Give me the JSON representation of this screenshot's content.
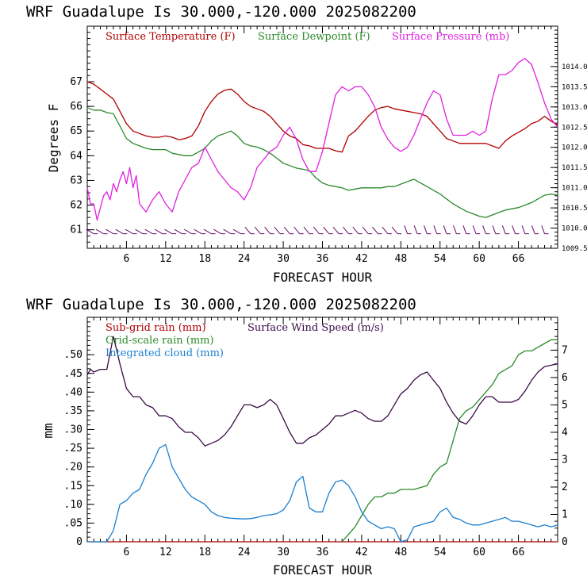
{
  "chart_data": [
    {
      "type": "line",
      "title": "WRF   Guadalupe Is  30.000,-120.000  2025082200",
      "xlabel": "FORECAST HOUR",
      "ylabel": "Degrees F",
      "xlim": [
        0,
        72
      ],
      "ylim": [
        60.25,
        69.25
      ],
      "y2lim": [
        1009.5,
        1015.0
      ],
      "x_ticks": [
        6,
        12,
        18,
        24,
        30,
        36,
        42,
        48,
        54,
        60,
        66
      ],
      "y_ticks": [
        61,
        62,
        63,
        64,
        65,
        66,
        67
      ],
      "y2_ticks": [
        "1009.5",
        "1010.0",
        "1010.5",
        "1011.0",
        "1011.5",
        "1012.0",
        "1012.5",
        "1013.0",
        "1013.5",
        "1014.0"
      ],
      "wind_barbs": "row of wind barbs near 61 F",
      "series": [
        {
          "name": "Surface Temperature (F)",
          "color": "#b00000",
          "axis": "left",
          "x": [
            0,
            1,
            2,
            3,
            4,
            5,
            6,
            7,
            8,
            9,
            10,
            11,
            12,
            13,
            14,
            15,
            16,
            17,
            18,
            19,
            20,
            21,
            22,
            23,
            24,
            25,
            26,
            27,
            28,
            29,
            30,
            31,
            32,
            33,
            34,
            35,
            36,
            37,
            38,
            39,
            40,
            41,
            42,
            43,
            44,
            45,
            46,
            47,
            48,
            49,
            50,
            51,
            52,
            53,
            54,
            55,
            56,
            57,
            58,
            59,
            60,
            61,
            62,
            63,
            64,
            65,
            66,
            67,
            68,
            69,
            70,
            71,
            72
          ],
          "values": [
            67.0,
            66.9,
            66.7,
            66.5,
            66.3,
            65.8,
            65.3,
            65.0,
            64.9,
            64.8,
            64.75,
            64.75,
            64.8,
            64.75,
            64.65,
            64.7,
            64.8,
            65.2,
            65.8,
            66.2,
            66.5,
            66.65,
            66.7,
            66.5,
            66.2,
            66.0,
            65.9,
            65.8,
            65.6,
            65.3,
            65.0,
            64.8,
            64.7,
            64.45,
            64.4,
            64.3,
            64.3,
            64.3,
            64.2,
            64.15,
            64.8,
            65.0,
            65.3,
            65.6,
            65.85,
            65.95,
            66.0,
            65.9,
            65.85,
            65.8,
            65.75,
            65.7,
            65.6,
            65.3,
            65.0,
            64.7,
            64.6,
            64.5,
            64.5,
            64.5,
            64.5,
            64.5,
            64.4,
            64.3,
            64.6,
            64.8,
            64.95,
            65.1,
            65.3,
            65.4,
            65.6,
            65.4,
            65.25
          ]
        },
        {
          "name": "Surface Dewpoint (F)",
          "color": "#2a8a2a",
          "axis": "left",
          "x": [
            0,
            1,
            2,
            3,
            4,
            5,
            6,
            7,
            8,
            9,
            10,
            11,
            12,
            13,
            14,
            15,
            16,
            17,
            18,
            19,
            20,
            21,
            22,
            23,
            24,
            25,
            26,
            27,
            28,
            29,
            30,
            31,
            32,
            33,
            34,
            35,
            36,
            37,
            38,
            39,
            40,
            41,
            42,
            43,
            44,
            45,
            46,
            47,
            48,
            49,
            50,
            51,
            52,
            53,
            54,
            55,
            56,
            57,
            58,
            59,
            60,
            61,
            62,
            63,
            64,
            65,
            66,
            67,
            68,
            69,
            70,
            71,
            72
          ],
          "values": [
            65.95,
            65.85,
            65.85,
            65.75,
            65.7,
            65.2,
            64.7,
            64.5,
            64.4,
            64.3,
            64.25,
            64.25,
            64.25,
            64.1,
            64.05,
            64.0,
            64.0,
            64.15,
            64.3,
            64.6,
            64.8,
            64.9,
            65.0,
            64.8,
            64.5,
            64.4,
            64.35,
            64.25,
            64.1,
            63.9,
            63.7,
            63.6,
            63.5,
            63.45,
            63.4,
            63.1,
            62.9,
            62.8,
            62.75,
            62.7,
            62.6,
            62.65,
            62.7,
            62.7,
            62.7,
            62.7,
            62.75,
            62.75,
            62.85,
            62.95,
            63.05,
            62.9,
            62.75,
            62.6,
            62.45,
            62.25,
            62.05,
            61.9,
            61.75,
            61.65,
            61.55,
            61.5,
            61.6,
            61.7,
            61.8,
            61.85,
            61.9,
            62.0,
            62.1,
            62.25,
            62.4,
            62.45,
            62.4
          ]
        },
        {
          "name": "Surface Pressure (mb)",
          "color": "#e020e0",
          "axis": "right",
          "x": [
            0,
            0.5,
            1,
            1.5,
            2,
            2.5,
            3,
            3.5,
            4,
            4.5,
            5,
            5.5,
            6,
            6.5,
            7,
            7.5,
            8,
            9,
            10,
            11,
            12,
            13,
            14,
            15,
            16,
            17,
            18,
            19,
            20,
            21,
            22,
            23,
            24,
            25,
            26,
            27,
            28,
            29,
            30,
            31,
            32,
            33,
            34,
            35,
            36,
            37,
            38,
            39,
            40,
            41,
            42,
            43,
            44,
            45,
            46,
            47,
            48,
            49,
            50,
            51,
            52,
            53,
            54,
            55,
            56,
            57,
            58,
            59,
            60,
            61,
            62,
            63,
            64,
            65,
            66,
            67,
            68,
            69,
            70,
            71,
            72
          ],
          "values": [
            1011.0,
            1010.6,
            1010.6,
            1010.2,
            1010.5,
            1010.8,
            1010.9,
            1010.7,
            1011.1,
            1010.9,
            1011.2,
            1011.4,
            1011.1,
            1011.5,
            1011.0,
            1011.3,
            1010.6,
            1010.4,
            1010.7,
            1010.9,
            1010.6,
            1010.4,
            1010.9,
            1011.2,
            1011.5,
            1011.6,
            1012.0,
            1011.7,
            1011.4,
            1011.2,
            1011.0,
            1010.9,
            1010.7,
            1011.0,
            1011.5,
            1011.7,
            1011.9,
            1012.0,
            1012.3,
            1012.5,
            1012.2,
            1011.7,
            1011.4,
            1011.4,
            1011.9,
            1012.6,
            1013.3,
            1013.5,
            1013.4,
            1013.5,
            1013.5,
            1013.3,
            1013.0,
            1012.5,
            1012.2,
            1012.0,
            1011.9,
            1012.0,
            1012.3,
            1012.7,
            1013.1,
            1013.4,
            1013.3,
            1012.7,
            1012.3,
            1012.3,
            1012.3,
            1012.4,
            1012.3,
            1012.4,
            1013.2,
            1013.8,
            1013.8,
            1013.9,
            1014.1,
            1014.2,
            1014.05,
            1013.6,
            1013.1,
            1012.7,
            1012.5
          ]
        }
      ]
    },
    {
      "type": "line",
      "title": "WRF   Guadalupe Is  30.000,-120.000  2025082200",
      "xlabel": "FORECAST HOUR",
      "ylabel": "mm",
      "xlim": [
        0,
        72
      ],
      "ylim": [
        0,
        0.6
      ],
      "y2lim": [
        0,
        8.2
      ],
      "x_ticks": [
        6,
        12,
        18,
        24,
        30,
        36,
        42,
        48,
        54,
        60,
        66
      ],
      "y_ticks": [
        "0",
        ".05",
        ".10",
        ".15",
        ".20",
        ".25",
        ".30",
        ".35",
        ".40",
        ".45",
        ".50"
      ],
      "y2_ticks": [
        0,
        1,
        2,
        3,
        4,
        5,
        6,
        7
      ],
      "series": [
        {
          "name": "Sub-grid rain (mm)",
          "color": "#b00000",
          "axis": "left",
          "x": [
            0,
            72
          ],
          "values": [
            0,
            0
          ]
        },
        {
          "name": "Grid-scale rain (mm)",
          "color": "#2a8a2a",
          "axis": "left",
          "x": [
            39,
            40,
            41,
            42,
            43,
            44,
            45,
            46,
            47,
            48,
            49,
            50,
            51,
            52,
            53,
            54,
            55,
            56,
            57,
            58,
            59,
            60,
            61,
            62,
            63,
            64,
            65,
            66,
            67,
            68,
            69,
            70,
            71,
            72
          ],
          "values": [
            0,
            0.02,
            0.04,
            0.07,
            0.1,
            0.12,
            0.12,
            0.13,
            0.13,
            0.14,
            0.14,
            0.14,
            0.145,
            0.15,
            0.18,
            0.2,
            0.21,
            0.27,
            0.33,
            0.35,
            0.36,
            0.38,
            0.4,
            0.42,
            0.45,
            0.46,
            0.47,
            0.5,
            0.51,
            0.51,
            0.52,
            0.53,
            0.54,
            0.54
          ]
        },
        {
          "name": "Integrated cloud (mm)",
          "color": "#1a7fd0",
          "axis": "left",
          "x": [
            0,
            1,
            2,
            3,
            4,
            5,
            6,
            7,
            8,
            9,
            10,
            11,
            12,
            13,
            14,
            15,
            16,
            17,
            18,
            19,
            20,
            21,
            22,
            23,
            24,
            25,
            26,
            27,
            28,
            29,
            30,
            31,
            32,
            33,
            34,
            35,
            36,
            37,
            38,
            39,
            40,
            41,
            42,
            43,
            44,
            45,
            46,
            47,
            48,
            49,
            50,
            51,
            52,
            53,
            54,
            55,
            56,
            57,
            58,
            59,
            60,
            61,
            62,
            63,
            64,
            65,
            66,
            67,
            68,
            69,
            70,
            71,
            72
          ],
          "values": [
            0,
            0,
            0,
            0,
            0.03,
            0.1,
            0.11,
            0.13,
            0.14,
            0.18,
            0.21,
            0.25,
            0.26,
            0.2,
            0.17,
            0.14,
            0.12,
            0.11,
            0.1,
            0.08,
            0.07,
            0.065,
            0.063,
            0.062,
            0.061,
            0.062,
            0.065,
            0.07,
            0.072,
            0.075,
            0.085,
            0.11,
            0.16,
            0.175,
            0.09,
            0.08,
            0.08,
            0.13,
            0.16,
            0.165,
            0.15,
            0.12,
            0.08,
            0.055,
            0.045,
            0.035,
            0.04,
            0.035,
            0.0,
            0.005,
            0.04,
            0.045,
            0.05,
            0.055,
            0.08,
            0.09,
            0.065,
            0.06,
            0.05,
            0.045,
            0.045,
            0.05,
            0.055,
            0.06,
            0.065,
            0.055,
            0.055,
            0.05,
            0.045,
            0.04,
            0.045,
            0.04,
            0.045
          ]
        },
        {
          "name": "Surface Wind Speed (m/s)",
          "color": "#3a0a45",
          "axis": "right",
          "x": [
            0,
            0.5,
            1,
            2,
            3,
            4,
            5,
            6,
            7,
            8,
            9,
            10,
            11,
            12,
            13,
            14,
            15,
            16,
            17,
            18,
            19,
            20,
            21,
            22,
            23,
            24,
            25,
            26,
            27,
            28,
            29,
            30,
            31,
            32,
            33,
            34,
            35,
            36,
            37,
            38,
            39,
            40,
            41,
            42,
            43,
            44,
            45,
            46,
            47,
            48,
            49,
            50,
            51,
            52,
            53,
            54,
            55,
            56,
            57,
            58,
            59,
            60,
            61,
            62,
            63,
            64,
            65,
            66,
            67,
            68,
            69,
            70,
            71,
            72
          ],
          "values": [
            6.1,
            6.3,
            6.2,
            6.3,
            6.3,
            7.5,
            6.5,
            5.6,
            5.3,
            5.3,
            5.0,
            4.9,
            4.6,
            4.6,
            4.5,
            4.2,
            4.0,
            4.0,
            3.8,
            3.5,
            3.6,
            3.7,
            3.9,
            4.2,
            4.6,
            5.0,
            5.0,
            4.9,
            5.0,
            5.2,
            5.0,
            4.5,
            4.0,
            3.6,
            3.6,
            3.8,
            3.9,
            4.1,
            4.3,
            4.6,
            4.6,
            4.7,
            4.8,
            4.7,
            4.5,
            4.4,
            4.4,
            4.6,
            5.0,
            5.4,
            5.6,
            5.9,
            6.1,
            6.2,
            5.9,
            5.6,
            5.1,
            4.7,
            4.4,
            4.3,
            4.6,
            5.0,
            5.3,
            5.3,
            5.1,
            5.1,
            5.1,
            5.2,
            5.5,
            5.9,
            6.2,
            6.4,
            6.45,
            6.5
          ]
        }
      ]
    }
  ]
}
